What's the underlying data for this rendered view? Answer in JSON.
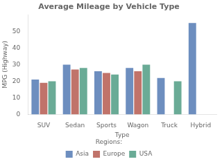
{
  "chart_data": {
    "type": "bar",
    "title": "Average Mileage by Vehicle Type",
    "xlabel": "Type",
    "ylabel": "MPG (Highway)",
    "categories": [
      "SUV",
      "Sedan",
      "Sports",
      "Wagon",
      "Truck",
      "Hybrid"
    ],
    "series": [
      {
        "name": "Asia",
        "color": "#6d8ebf",
        "values": [
          21,
          30,
          26,
          28,
          22,
          55
        ]
      },
      {
        "name": "Europe",
        "color": "#c0736a",
        "values": [
          19,
          27,
          25,
          26,
          0,
          0
        ]
      },
      {
        "name": "USA",
        "color": "#6aab96",
        "values": [
          20,
          28,
          24,
          30,
          20,
          0
        ]
      }
    ],
    "ylim": [
      0,
      60
    ],
    "yticks": [
      0,
      10,
      20,
      30,
      40,
      50
    ],
    "grid": false,
    "legend": "bottom",
    "legend_title": "Regions:"
  }
}
